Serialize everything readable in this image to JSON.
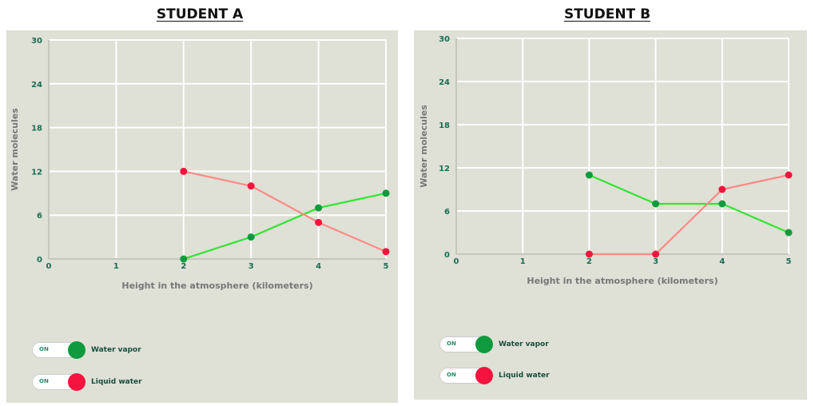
{
  "panels": [
    {
      "title": "STUDENT A",
      "toggles": [
        {
          "state": "ON",
          "label": "Water vapor",
          "color": "#0f9a3e"
        },
        {
          "state": "ON",
          "label": "Liquid water",
          "color": "#f5133f"
        }
      ]
    },
    {
      "title": "STUDENT B",
      "toggles": [
        {
          "state": "ON",
          "label": "Water vapor",
          "color": "#0f9a3e"
        },
        {
          "state": "ON",
          "label": "Liquid water",
          "color": "#f5133f"
        }
      ]
    }
  ],
  "chart_data": [
    {
      "type": "line",
      "title": "STUDENT A",
      "xlabel": "Height in the atmosphere (kilometers)",
      "ylabel": "Water molecules",
      "x_ticks": [
        0,
        1,
        2,
        3,
        4,
        5
      ],
      "y_ticks": [
        0,
        6,
        12,
        18,
        24,
        30
      ],
      "xlim": [
        0,
        5
      ],
      "ylim": [
        0,
        30
      ],
      "grid": true,
      "legend_placement": "bottom-left",
      "series": [
        {
          "name": "Water vapor",
          "color": "#0f9a3e",
          "line_color": "#2fe62f",
          "x": [
            2,
            3,
            4,
            5
          ],
          "y": [
            0,
            3,
            7,
            9
          ]
        },
        {
          "name": "Liquid water",
          "color": "#f5133f",
          "line_color": "#ff8a86",
          "x": [
            2,
            3,
            4,
            5
          ],
          "y": [
            12,
            10,
            5,
            1
          ]
        }
      ]
    },
    {
      "type": "line",
      "title": "STUDENT B",
      "xlabel": "Height in the atmosphere (kilometers)",
      "ylabel": "Water molecules",
      "x_ticks": [
        0,
        1,
        2,
        3,
        4,
        5
      ],
      "y_ticks": [
        0,
        6,
        12,
        18,
        24,
        30
      ],
      "xlim": [
        0,
        5
      ],
      "ylim": [
        0,
        30
      ],
      "grid": true,
      "legend_placement": "bottom-left",
      "series": [
        {
          "name": "Water vapor",
          "color": "#0f9a3e",
          "line_color": "#2fe62f",
          "x": [
            2,
            3,
            4,
            5
          ],
          "y": [
            11,
            7,
            7,
            3
          ]
        },
        {
          "name": "Liquid water",
          "color": "#f5133f",
          "line_color": "#ff8a86",
          "x": [
            2,
            3,
            4,
            5
          ],
          "y": [
            0,
            0,
            9,
            11
          ]
        }
      ]
    }
  ]
}
